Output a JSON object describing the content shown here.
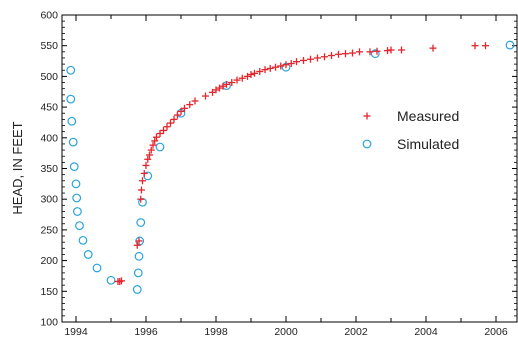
{
  "chart_data": {
    "type": "scatter",
    "title": "",
    "xlabel": "",
    "ylabel": "HEAD, IN FEET",
    "xlim": [
      1993.6,
      2006.6
    ],
    "ylim": [
      100,
      600
    ],
    "x_ticks": [
      1994,
      1996,
      1998,
      2000,
      2002,
      2004,
      2006
    ],
    "y_ticks": [
      100,
      150,
      200,
      250,
      300,
      350,
      400,
      450,
      500,
      550,
      600
    ],
    "legend_position": "right",
    "series": [
      {
        "name": "Measured",
        "marker": "plus",
        "color": "#e3262d",
        "points": [
          [
            1995.2,
            166
          ],
          [
            1995.25,
            166
          ],
          [
            1995.3,
            167
          ],
          [
            1995.75,
            225
          ],
          [
            1995.8,
            232
          ],
          [
            1995.85,
            300
          ],
          [
            1995.87,
            315
          ],
          [
            1995.9,
            330
          ],
          [
            1995.95,
            342
          ],
          [
            1996.0,
            355
          ],
          [
            1996.05,
            365
          ],
          [
            1996.1,
            372
          ],
          [
            1996.15,
            380
          ],
          [
            1996.2,
            388
          ],
          [
            1996.25,
            395
          ],
          [
            1996.3,
            401
          ],
          [
            1996.4,
            407
          ],
          [
            1996.5,
            412
          ],
          [
            1996.6,
            418
          ],
          [
            1996.7,
            424
          ],
          [
            1996.8,
            430
          ],
          [
            1996.9,
            437
          ],
          [
            1997.0,
            443
          ],
          [
            1997.1,
            448
          ],
          [
            1997.25,
            454
          ],
          [
            1997.4,
            460
          ],
          [
            1997.7,
            468
          ],
          [
            1997.9,
            474
          ],
          [
            1998.0,
            478
          ],
          [
            1998.1,
            481
          ],
          [
            1998.2,
            484
          ],
          [
            1998.3,
            487
          ],
          [
            1998.45,
            490
          ],
          [
            1998.6,
            494
          ],
          [
            1998.75,
            497
          ],
          [
            1998.9,
            500
          ],
          [
            1999.0,
            503
          ],
          [
            1999.1,
            505
          ],
          [
            1999.25,
            508
          ],
          [
            1999.4,
            511
          ],
          [
            1999.55,
            513
          ],
          [
            1999.7,
            515
          ],
          [
            1999.85,
            517
          ],
          [
            2000.0,
            519
          ],
          [
            2000.15,
            521
          ],
          [
            2000.3,
            524
          ],
          [
            2000.5,
            526
          ],
          [
            2000.7,
            528
          ],
          [
            2000.9,
            530
          ],
          [
            2001.1,
            532
          ],
          [
            2001.3,
            534
          ],
          [
            2001.5,
            536
          ],
          [
            2001.7,
            537
          ],
          [
            2001.9,
            538
          ],
          [
            2002.1,
            540
          ],
          [
            2002.4,
            540
          ],
          [
            2002.6,
            541
          ],
          [
            2002.9,
            542
          ],
          [
            2003.0,
            543
          ],
          [
            2003.3,
            543
          ],
          [
            2004.2,
            546
          ],
          [
            2005.4,
            550
          ],
          [
            2005.7,
            550
          ]
        ]
      },
      {
        "name": "Simulated",
        "marker": "circle",
        "color": "#29a3dc",
        "points": [
          [
            1993.85,
            510
          ],
          [
            1993.85,
            463
          ],
          [
            1993.88,
            427
          ],
          [
            1993.92,
            393
          ],
          [
            1993.95,
            353
          ],
          [
            1994.0,
            325
          ],
          [
            1994.02,
            302
          ],
          [
            1994.04,
            280
          ],
          [
            1994.1,
            257
          ],
          [
            1994.2,
            233
          ],
          [
            1994.35,
            210
          ],
          [
            1994.6,
            188
          ],
          [
            1995.0,
            168
          ],
          [
            1995.75,
            153
          ],
          [
            1995.78,
            180
          ],
          [
            1995.8,
            207
          ],
          [
            1995.82,
            232
          ],
          [
            1995.85,
            262
          ],
          [
            1995.9,
            295
          ],
          [
            1996.05,
            338
          ],
          [
            1996.4,
            385
          ],
          [
            1997.0,
            440
          ],
          [
            1998.3,
            485
          ],
          [
            2000.0,
            515
          ],
          [
            2002.55,
            537
          ],
          [
            2006.4,
            551
          ]
        ]
      }
    ]
  }
}
